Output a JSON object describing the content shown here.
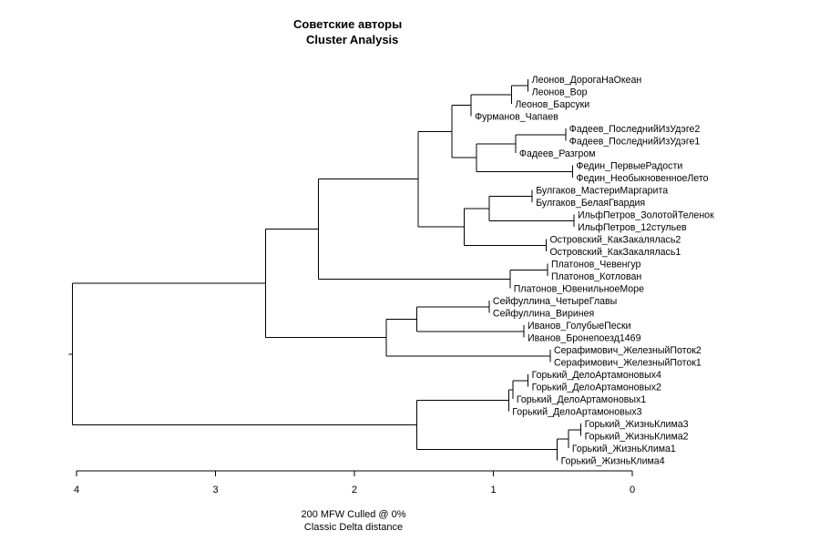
{
  "chart_data": {
    "type": "dendrogram",
    "title": [
      "Советские авторы",
      "Cluster Analysis"
    ],
    "subtitle": [
      "200 MFW  Culled @ 0%",
      "Classic Delta distance"
    ],
    "xlim": [
      4,
      0
    ],
    "xticks": [
      "4",
      "3",
      "2",
      "1",
      "0"
    ],
    "leaves": [
      "Леонов_ДорогаНаОкеан",
      "Леонов_Вор",
      "Леонов_Барсуки",
      "Фурманов_Чапаев",
      "Фадеев_ПоследнийИзУдэге2",
      "Фадеев_ПоследнийИзУдэге1",
      "Фадеев_Разгром",
      "Федин_ПервыеРадости",
      "Федин_НеобыкновенноеЛето",
      "Булгаков_МастериМаргарита",
      "Булгаков_БелаяГвардия",
      "ИльфПетров_ЗолотойТеленок",
      "ИльфПетров_12стульев",
      "Островский_КакЗакалялась2",
      "Островский_КакЗакалялась1",
      "Платонов_Чевенгур",
      "Платонов_Котлован",
      "Платонов_ЮвенильноеМоре",
      "Сейфуллина_ЧетыреГлавы",
      "Сейфуллина_Виринея",
      "Иванов_ГолубыеПески",
      "Иванов_Бронепоезд1469",
      "Серафимович_ЖелезныйПоток2",
      "Серафимович_ЖелезныйПоток1",
      "Горький_ДелоАртамоновых4",
      "Горький_ДелоАртамоновых2",
      "Горький_ДелоАртамоновых1",
      "Горький_ДелоАртамоновых3",
      "Горький_ЖизньКлима3",
      "Горький_ЖизньКлима2",
      "Горький_ЖизньКлима1",
      "Горький_ЖизньКлима4"
    ],
    "merges": [
      {
        "id": "a",
        "height": 0.75,
        "children": [
          0,
          1
        ]
      },
      {
        "id": "b",
        "height": 0.87,
        "children": [
          "a",
          2
        ]
      },
      {
        "id": "c",
        "height": 1.16,
        "children": [
          "b",
          3
        ]
      },
      {
        "id": "d",
        "height": 0.48,
        "children": [
          4,
          5
        ]
      },
      {
        "id": "e",
        "height": 0.84,
        "children": [
          "d",
          6
        ]
      },
      {
        "id": "f",
        "height": 0.43,
        "children": [
          7,
          8
        ]
      },
      {
        "id": "g",
        "height": 1.12,
        "children": [
          "e",
          "f"
        ]
      },
      {
        "id": "h",
        "height": 1.3,
        "children": [
          "c",
          "g"
        ]
      },
      {
        "id": "i",
        "height": 0.72,
        "children": [
          9,
          10
        ]
      },
      {
        "id": "j",
        "height": 0.42,
        "children": [
          11,
          12
        ]
      },
      {
        "id": "k",
        "height": 1.03,
        "children": [
          "i",
          "j"
        ]
      },
      {
        "id": "l",
        "height": 0.62,
        "children": [
          13,
          14
        ]
      },
      {
        "id": "m",
        "height": 1.21,
        "children": [
          "k",
          "l"
        ]
      },
      {
        "id": "n",
        "height": 1.54,
        "children": [
          "h",
          "m"
        ]
      },
      {
        "id": "o",
        "height": 0.61,
        "children": [
          15,
          16
        ]
      },
      {
        "id": "p",
        "height": 0.88,
        "children": [
          "o",
          17
        ]
      },
      {
        "id": "q",
        "height": 2.26,
        "children": [
          "n",
          "p"
        ]
      },
      {
        "id": "r",
        "height": 1.03,
        "children": [
          18,
          19
        ]
      },
      {
        "id": "s",
        "height": 0.78,
        "children": [
          20,
          21
        ]
      },
      {
        "id": "t",
        "height": 1.55,
        "children": [
          "r",
          "s"
        ]
      },
      {
        "id": "u",
        "height": 0.59,
        "children": [
          22,
          23
        ]
      },
      {
        "id": "v",
        "height": 1.77,
        "children": [
          "t",
          "u"
        ]
      },
      {
        "id": "w",
        "height": 2.64,
        "children": [
          "q",
          "v"
        ]
      },
      {
        "id": "x",
        "height": 0.75,
        "children": [
          24,
          25
        ]
      },
      {
        "id": "y",
        "height": 0.86,
        "children": [
          "x",
          26
        ]
      },
      {
        "id": "z",
        "height": 0.89,
        "children": [
          "y",
          27
        ]
      },
      {
        "id": "aa",
        "height": 0.37,
        "children": [
          28,
          29
        ]
      },
      {
        "id": "ab",
        "height": 0.46,
        "children": [
          "aa",
          30
        ]
      },
      {
        "id": "ac",
        "height": 0.54,
        "children": [
          "ab",
          31
        ]
      },
      {
        "id": "ad",
        "height": 1.55,
        "children": [
          "z",
          "ac"
        ]
      },
      {
        "id": "ae",
        "height": 4.03,
        "children": [
          "w",
          "ad"
        ]
      }
    ]
  }
}
